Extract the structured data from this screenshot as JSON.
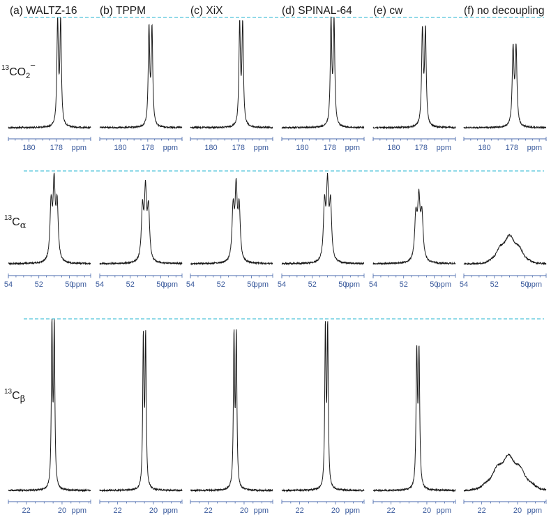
{
  "columns": [
    {
      "id": "a",
      "label": "(a) WALTZ-16"
    },
    {
      "id": "b",
      "label": "(b) TPPM"
    },
    {
      "id": "c",
      "label": "(c) XiX"
    },
    {
      "id": "d",
      "label": "(d) SPINAL-64"
    },
    {
      "id": "e",
      "label": "(e) cw"
    },
    {
      "id": "f",
      "label": "(f) no decoupling"
    }
  ],
  "rows": [
    {
      "id": "co2",
      "label_sup": "13",
      "label_main": "CO",
      "label_sub": "2",
      "label_charge": "−"
    },
    {
      "id": "ca",
      "label_sup": "13",
      "label_main": "C",
      "label_sub": "α"
    },
    {
      "id": "cb",
      "label_sup": "13",
      "label_main": "C",
      "label_sub": "β"
    }
  ],
  "colors": {
    "trace": "#1a1a1a",
    "axis": "#4a6aad",
    "tick_label": "#3a5a9c",
    "reference_line": "#4fc3d9"
  },
  "chart_data": [
    {
      "type": "line",
      "row": "co2",
      "x_unit": "ppm",
      "xlim": [
        181.5,
        175.5
      ],
      "x_reversed": true,
      "xticks": [
        180,
        178
      ],
      "tick_labels": [
        "180",
        "178",
        "ppm"
      ],
      "peak_center_ppm": 177.8,
      "series": [
        {
          "name": "(a) WALTZ-16",
          "shape": "doublet",
          "split_ppm": 0.22,
          "width_ppm": 0.13,
          "intensity": 1.0
        },
        {
          "name": "(b) TPPM",
          "shape": "doublet",
          "split_ppm": 0.22,
          "width_ppm": 0.13,
          "intensity": 0.93
        },
        {
          "name": "(c) XiX",
          "shape": "doublet",
          "split_ppm": 0.22,
          "width_ppm": 0.13,
          "intensity": 0.97
        },
        {
          "name": "(d) SPINAL-64",
          "shape": "doublet",
          "split_ppm": 0.22,
          "width_ppm": 0.13,
          "intensity": 1.0
        },
        {
          "name": "(e) cw",
          "shape": "doublet",
          "split_ppm": 0.22,
          "width_ppm": 0.14,
          "intensity": 0.92
        },
        {
          "name": "(f) no decoupling",
          "shape": "doublet",
          "split_ppm": 0.22,
          "width_ppm": 0.15,
          "intensity": 0.76
        }
      ]
    },
    {
      "type": "line",
      "row": "ca",
      "x_unit": "ppm",
      "xlim": [
        54,
        48.6
      ],
      "x_reversed": true,
      "xticks": [
        54,
        52,
        50
      ],
      "tick_labels": [
        "54",
        "52",
        "50",
        "ppm"
      ],
      "peak_center_ppm": 51.0,
      "series": [
        {
          "name": "(a) WALTZ-16",
          "shape": "triplet",
          "split_ppm": 0.22,
          "width_ppm": 0.17,
          "intensity": 0.98
        },
        {
          "name": "(b) TPPM",
          "shape": "triplet",
          "split_ppm": 0.22,
          "width_ppm": 0.17,
          "intensity": 0.9
        },
        {
          "name": "(c) XiX",
          "shape": "triplet",
          "split_ppm": 0.22,
          "width_ppm": 0.17,
          "intensity": 0.92
        },
        {
          "name": "(d) SPINAL-64",
          "shape": "triplet",
          "split_ppm": 0.22,
          "width_ppm": 0.17,
          "intensity": 0.97
        },
        {
          "name": "(e) cw",
          "shape": "triplet",
          "split_ppm": 0.22,
          "width_ppm": 0.19,
          "intensity": 0.8
        },
        {
          "name": "(f) no decoupling",
          "shape": "broad",
          "width_ppm": 0.65,
          "intensity": 0.31
        }
      ]
    },
    {
      "type": "line",
      "row": "cb",
      "x_unit": "ppm",
      "xlim": [
        23,
        18.4
      ],
      "x_reversed": true,
      "xticks": [
        22,
        20
      ],
      "tick_labels": [
        "22",
        "20",
        "ppm"
      ],
      "peak_center_ppm": 20.5,
      "series": [
        {
          "name": "(a) WALTZ-16",
          "shape": "doublet",
          "split_ppm": 0.13,
          "width_ppm": 0.08,
          "intensity": 1.0
        },
        {
          "name": "(b) TPPM",
          "shape": "doublet",
          "split_ppm": 0.13,
          "width_ppm": 0.08,
          "intensity": 0.93
        },
        {
          "name": "(c) XiX",
          "shape": "doublet",
          "split_ppm": 0.13,
          "width_ppm": 0.08,
          "intensity": 0.94
        },
        {
          "name": "(d) SPINAL-64",
          "shape": "doublet",
          "split_ppm": 0.13,
          "width_ppm": 0.08,
          "intensity": 0.99
        },
        {
          "name": "(e) cw",
          "shape": "doublet",
          "split_ppm": 0.13,
          "width_ppm": 0.09,
          "intensity": 0.85
        },
        {
          "name": "(f) no decoupling",
          "shape": "broad",
          "width_ppm": 0.75,
          "intensity": 0.21
        }
      ]
    }
  ]
}
